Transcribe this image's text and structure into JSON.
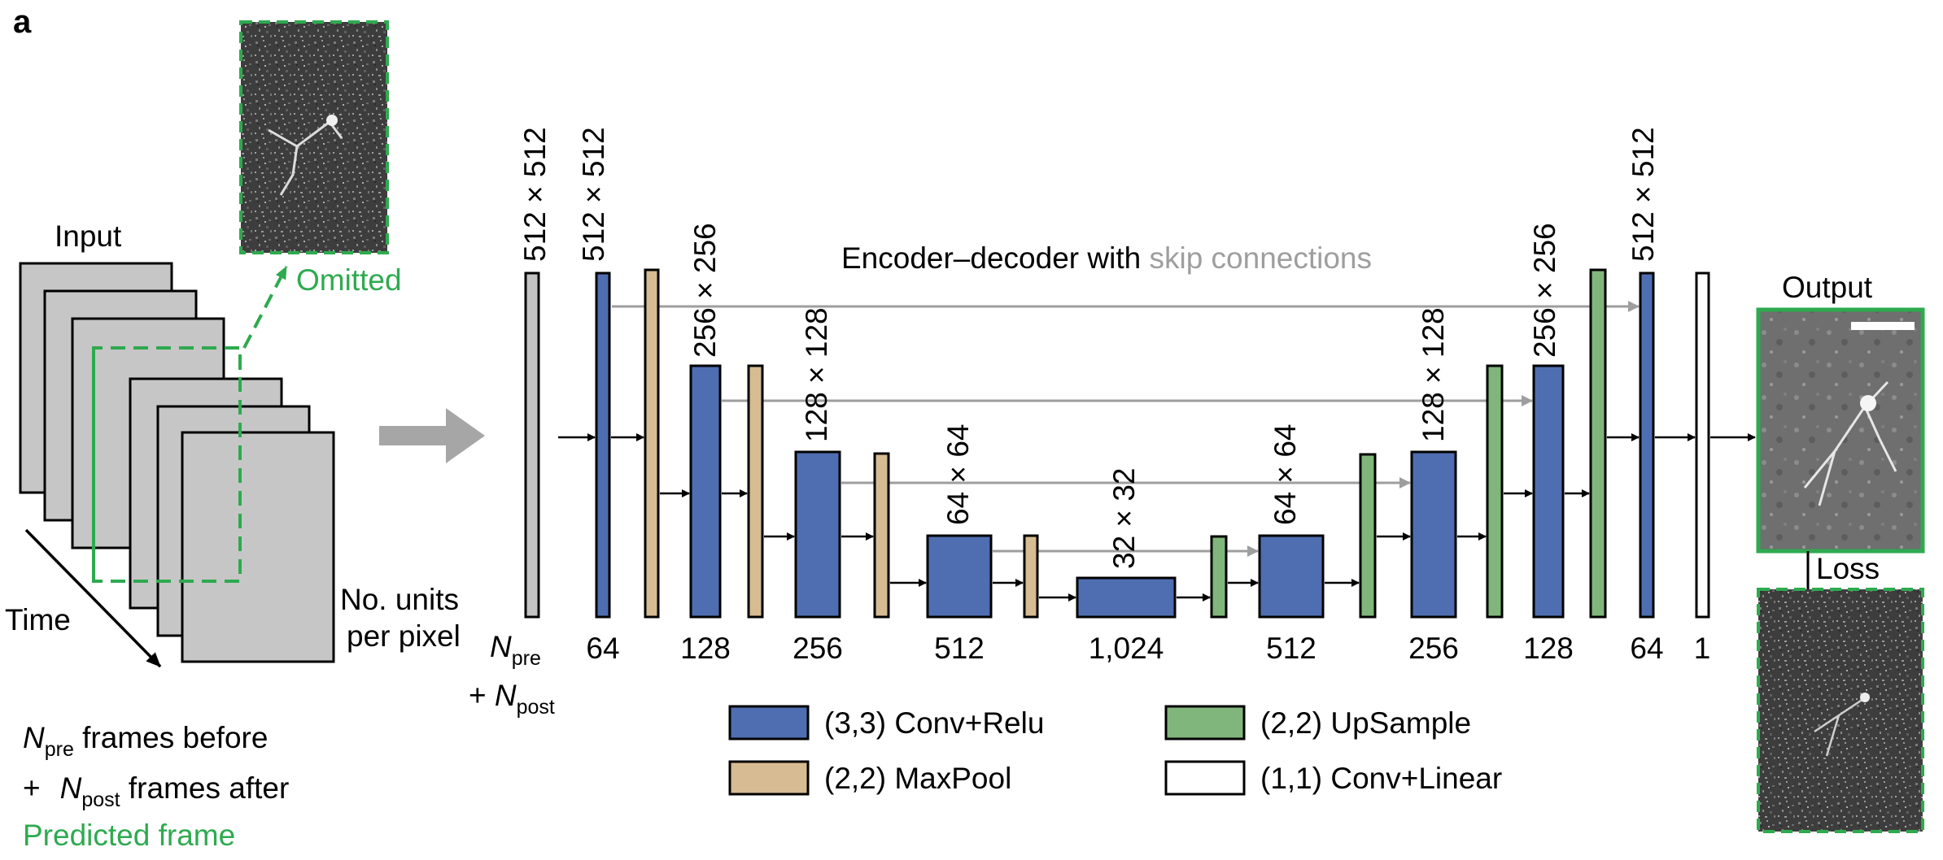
{
  "panel_label": "a",
  "input": {
    "title": "Input",
    "omitted_label": "Omitted",
    "time_label": "Time",
    "units_label_line1": "No. units",
    "units_label_line2": "per pixel",
    "frame_count": 6
  },
  "frames_caption": {
    "line1_sym": "N",
    "line1_sub": "pre",
    "line1_text": " frames before",
    "line2_prefix": "+",
    "line2_sym": "N",
    "line2_sub": "post",
    "line2_text": " frames after",
    "line3": "Predicted frame"
  },
  "network": {
    "title_main": "Encoder–decoder with ",
    "title_skip": "skip connections",
    "input_size": "512 × 512",
    "input_channels_sym1": "N",
    "input_channels_sub1": "pre",
    "input_channels_plus": "+ ",
    "input_channels_sym2": "N",
    "input_channels_sub2": "post",
    "columns": [
      {
        "channels": "64",
        "size": "512 × 512"
      },
      {
        "channels": "128",
        "size": "256 × 256"
      },
      {
        "channels": "256",
        "size": "128 × 128"
      },
      {
        "channels": "512",
        "size": "64 × 64"
      },
      {
        "channels": "1,024",
        "size": "32 × 32"
      },
      {
        "channels": "512",
        "size": "64 × 64"
      },
      {
        "channels": "256",
        "size": "128 × 128"
      },
      {
        "channels": "128",
        "size": "256 × 256"
      },
      {
        "channels": "64",
        "size": "512 × 512"
      },
      {
        "channels": "1",
        "size": ""
      }
    ]
  },
  "legend": [
    {
      "label": "(3,3) Conv+Relu",
      "color": "#4e6eb1"
    },
    {
      "label": "(2,2) MaxPool",
      "color": "#d7bb92"
    },
    {
      "label": "(2,2) UpSample",
      "color": "#80b67b"
    },
    {
      "label": "(1,1) Conv+Linear",
      "color": "#ffffff"
    }
  ],
  "output": {
    "title": "Output",
    "loss_label": "Loss"
  },
  "colors": {
    "conv": "#4e6eb1",
    "pool": "#d7bb92",
    "upsample": "#80b67b",
    "input_bar": "#c3c3c3",
    "skip_arrow": "#9e9e9e",
    "highlight_green": "#2eaa4f",
    "frame_fill": "#c6c6c6"
  }
}
